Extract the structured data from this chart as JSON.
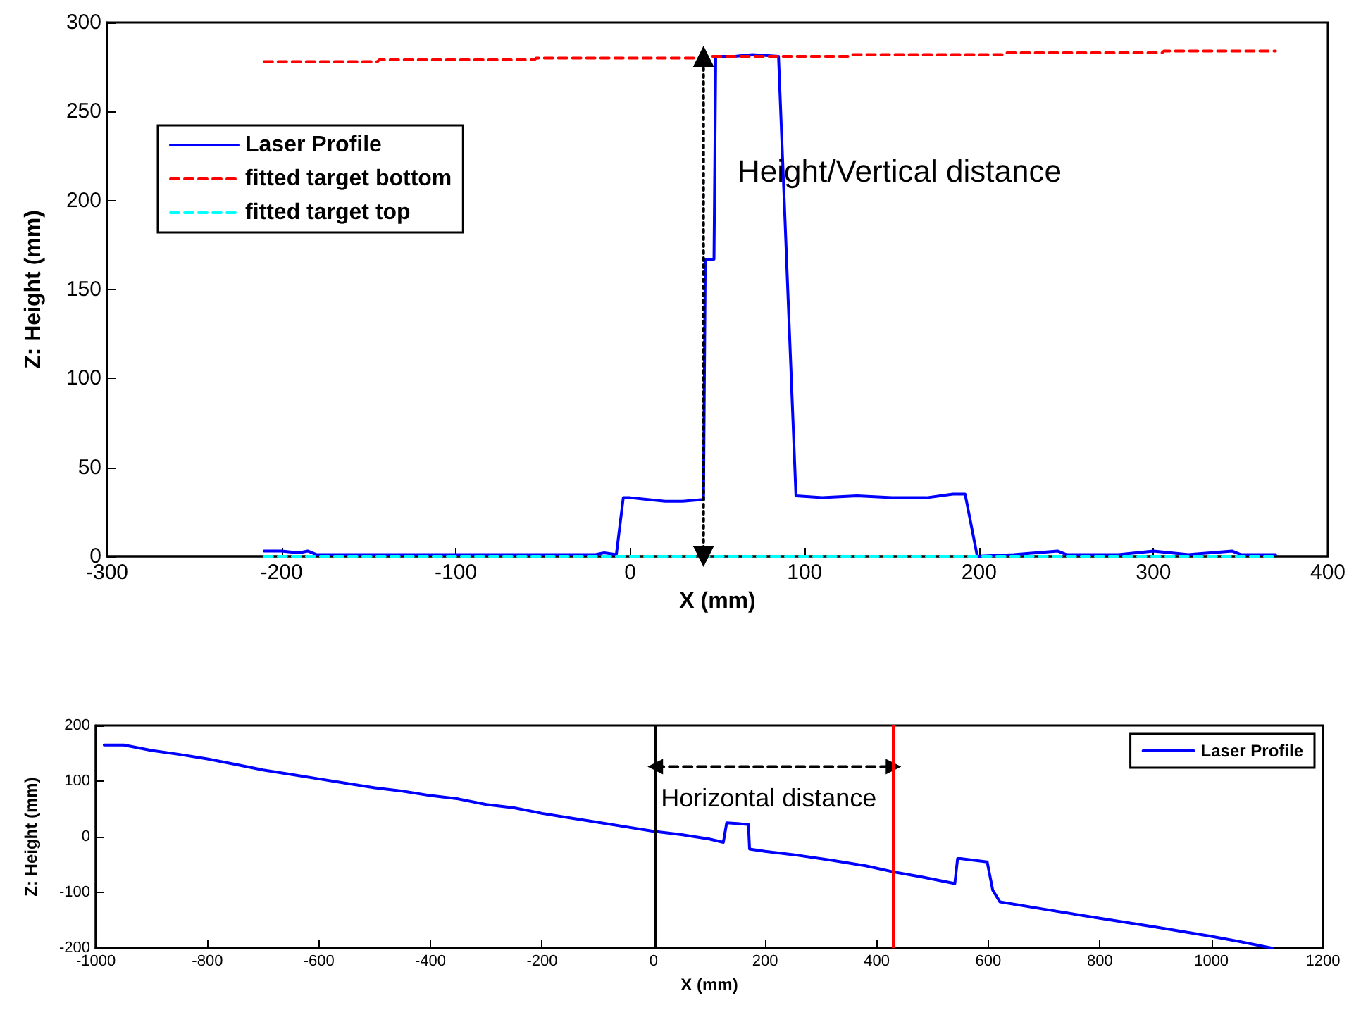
{
  "chart_data": [
    {
      "type": "line",
      "xlabel": "X (mm)",
      "ylabel": "Z: Height (mm)",
      "xlim": [
        -300,
        400
      ],
      "xticks": [
        -300,
        -200,
        -100,
        0,
        100,
        200,
        300,
        400
      ],
      "ylim": [
        0,
        300
      ],
      "yticks": [
        0,
        50,
        100,
        150,
        200,
        250,
        300
      ],
      "grid": false,
      "legend": "top left",
      "annotations": [
        "Height/Vertical distance"
      ],
      "series": [
        {
          "name": "Laser Profile",
          "color": "#0000ff",
          "line_style": "solid",
          "x": [
            -210,
            -200,
            -190,
            -185,
            -180,
            -150,
            -100,
            -50,
            -20,
            -15,
            -8,
            -4,
            0,
            10,
            20,
            30,
            42,
            43,
            48,
            49,
            60,
            70,
            85,
            95,
            110,
            130,
            150,
            170,
            185,
            192,
            199,
            220,
            245,
            250,
            280,
            300,
            320,
            345,
            350,
            370
          ],
          "values": [
            3,
            3,
            2,
            3,
            1,
            1,
            1,
            1,
            1,
            2,
            1,
            33,
            33,
            32,
            31,
            31,
            32,
            167,
            167,
            281,
            281,
            282,
            281,
            34,
            33,
            34,
            33,
            33,
            35,
            35,
            0,
            1,
            3,
            1,
            1,
            3,
            1,
            3,
            1,
            1
          ]
        },
        {
          "name": "fitted target bottom",
          "color": "#ff0000",
          "line_style": "dashed",
          "x": [
            -210,
            -145,
            -144,
            -55,
            -54,
            40,
            41,
            125,
            126,
            215,
            216,
            305,
            306,
            370
          ],
          "values": [
            278,
            278,
            279,
            279,
            280,
            280,
            281,
            281,
            282,
            282,
            283,
            283,
            284,
            284
          ]
        },
        {
          "name": "fitted target top",
          "color": "#00ffff",
          "line_style": "dashed",
          "x": [
            -210,
            370
          ],
          "values": [
            0,
            0
          ]
        },
        {
          "type": "line",
          "color": "#000000",
          "line_style": "dotted",
          "marker": "triangle",
          "x": [
            42,
            42
          ],
          "values": [
            0,
            281
          ]
        }
      ]
    },
    {
      "type": "line",
      "xlabel": "X (mm)",
      "ylabel": "Z: Height (mm)",
      "xlim": [
        -1000,
        1200
      ],
      "xticks": [
        -1000,
        -800,
        -600,
        -400,
        -200,
        0,
        200,
        400,
        600,
        800,
        1000,
        1200
      ],
      "ylim": [
        -200,
        200
      ],
      "yticks": [
        -200,
        -100,
        0,
        100,
        200
      ],
      "grid": false,
      "legend": "top right",
      "annotations": [
        "Horizontal distance"
      ],
      "ref_lines": [
        {
          "axis": "x",
          "value": 3,
          "color": "#000000"
        },
        {
          "axis": "x",
          "value": 430,
          "color": "#ff0000"
        }
      ],
      "series": [
        {
          "name": "Laser Profile",
          "color": "#0000ff",
          "line_style": "solid",
          "x": [
            -985,
            -950,
            -900,
            -850,
            -800,
            -750,
            -700,
            -650,
            -600,
            -550,
            -500,
            -450,
            -400,
            -350,
            -300,
            -250,
            -200,
            -150,
            -100,
            -50,
            0,
            50,
            100,
            125,
            131,
            150,
            170,
            172,
            200,
            250,
            318,
            380,
            430,
            480,
            540,
            545,
            550,
            598,
            608,
            621,
            700,
            798,
            900,
            995,
            1050,
            1109
          ],
          "values": [
            165,
            165,
            155,
            148,
            140,
            130,
            120,
            112,
            104,
            96,
            88,
            82,
            74,
            68,
            58,
            52,
            42,
            34,
            26,
            18,
            10,
            4,
            -4,
            -10,
            25,
            24,
            22,
            -22,
            -26,
            -32,
            -42,
            -52,
            -63,
            -72,
            -84,
            -39,
            -39,
            -45,
            -96,
            -117,
            -130,
            -146,
            -162,
            -178,
            -188,
            -200
          ]
        },
        {
          "type": "line",
          "color": "#000000",
          "line_style": "dashed",
          "marker": "triangle",
          "x": [
            3,
            430
          ],
          "values": [
            126,
            126
          ]
        }
      ]
    }
  ]
}
